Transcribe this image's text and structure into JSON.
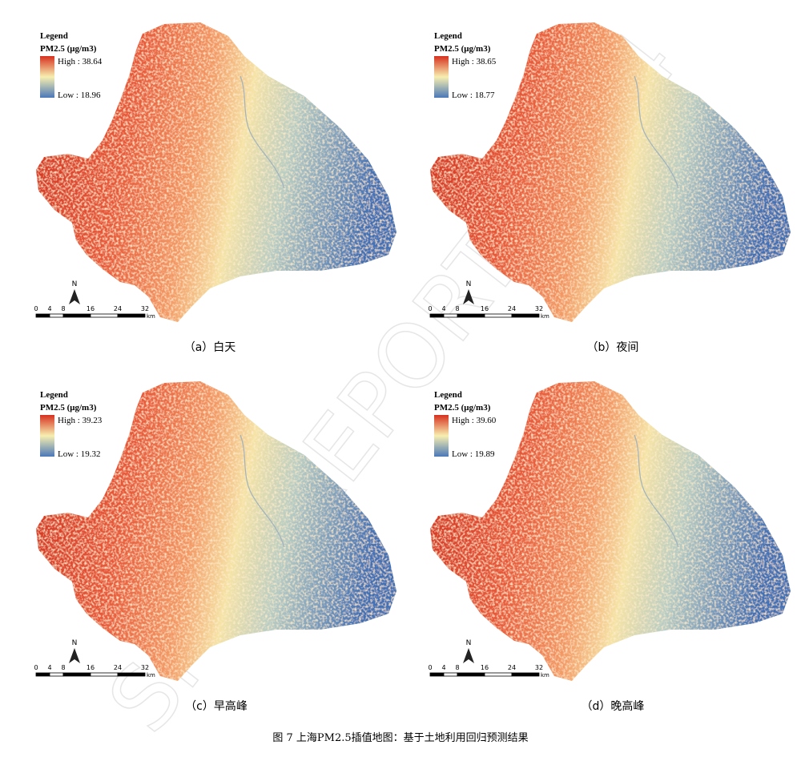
{
  "panels": [
    {
      "legend_title": "Legend",
      "variable": "PM2.5 (μg/m3)",
      "high": "High : 38.64",
      "low": "Low : 18.96",
      "north": "N",
      "scale_ticks": [
        "0",
        "4",
        "8",
        "16",
        "24",
        "32"
      ],
      "scale_unit": "km",
      "caption": "（a）白天"
    },
    {
      "legend_title": "Legend",
      "variable": "PM2.5 (μg/m3)",
      "high": "High : 38.65",
      "low": "Low : 18.77",
      "north": "N",
      "scale_ticks": [
        "0",
        "4",
        "8",
        "16",
        "24",
        "32"
      ],
      "scale_unit": "km",
      "caption": "（b）夜间"
    },
    {
      "legend_title": "Legend",
      "variable": "PM2.5 (μg/m3)",
      "high": "High : 39.23",
      "low": "Low : 19.32",
      "north": "N",
      "scale_ticks": [
        "0",
        "4",
        "8",
        "16",
        "24",
        "32"
      ],
      "scale_unit": "km",
      "caption": "（c）早高峰"
    },
    {
      "legend_title": "Legend",
      "variable": "PM2.5 (μg/m3)",
      "high": "High : 39.60",
      "low": "Low : 19.89",
      "north": "N",
      "scale_ticks": [
        "0",
        "4",
        "8",
        "16",
        "24",
        "32"
      ],
      "scale_unit": "km",
      "caption": "（d）晚高峰"
    }
  ],
  "figure_caption": "图 7 上海PM2.5插值地图：基于土地利用回归预测结果",
  "watermark": "SFC - REPORT 2024"
}
